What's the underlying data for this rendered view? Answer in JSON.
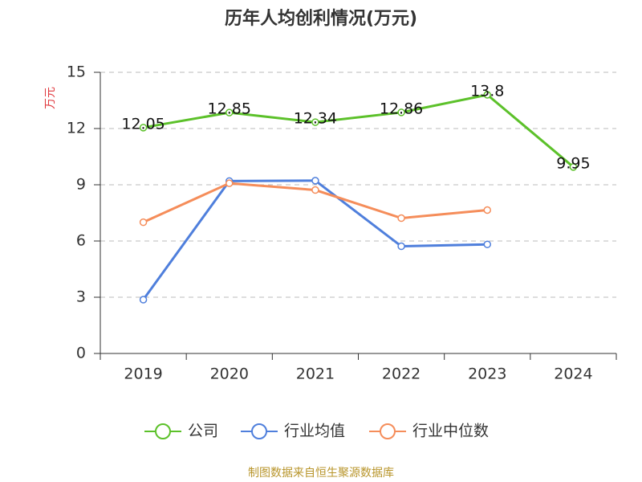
{
  "chart_data": {
    "type": "line",
    "title": "历年人均创利情况(万元)",
    "y_label": "万元",
    "categories": [
      "2019",
      "2020",
      "2021",
      "2022",
      "2023",
      "2024"
    ],
    "series": [
      {
        "name": "公司",
        "color": "#5cc12a",
        "values": [
          12.05,
          12.85,
          12.34,
          12.86,
          13.8,
          9.95
        ],
        "show_labels": true
      },
      {
        "name": "行业均值",
        "color": "#4f7fdc",
        "values": [
          2.87,
          9.2,
          9.22,
          5.72,
          5.82,
          null
        ],
        "show_labels": false
      },
      {
        "name": "行业中位数",
        "color": "#f58d5a",
        "values": [
          7.0,
          9.08,
          8.72,
          7.22,
          7.65,
          null
        ],
        "show_labels": false
      }
    ],
    "ylim": [
      0,
      15
    ],
    "yticks": [
      0,
      3,
      6,
      9,
      12,
      15
    ],
    "grid": true,
    "source": "制图数据来自恒生聚源数据库"
  }
}
